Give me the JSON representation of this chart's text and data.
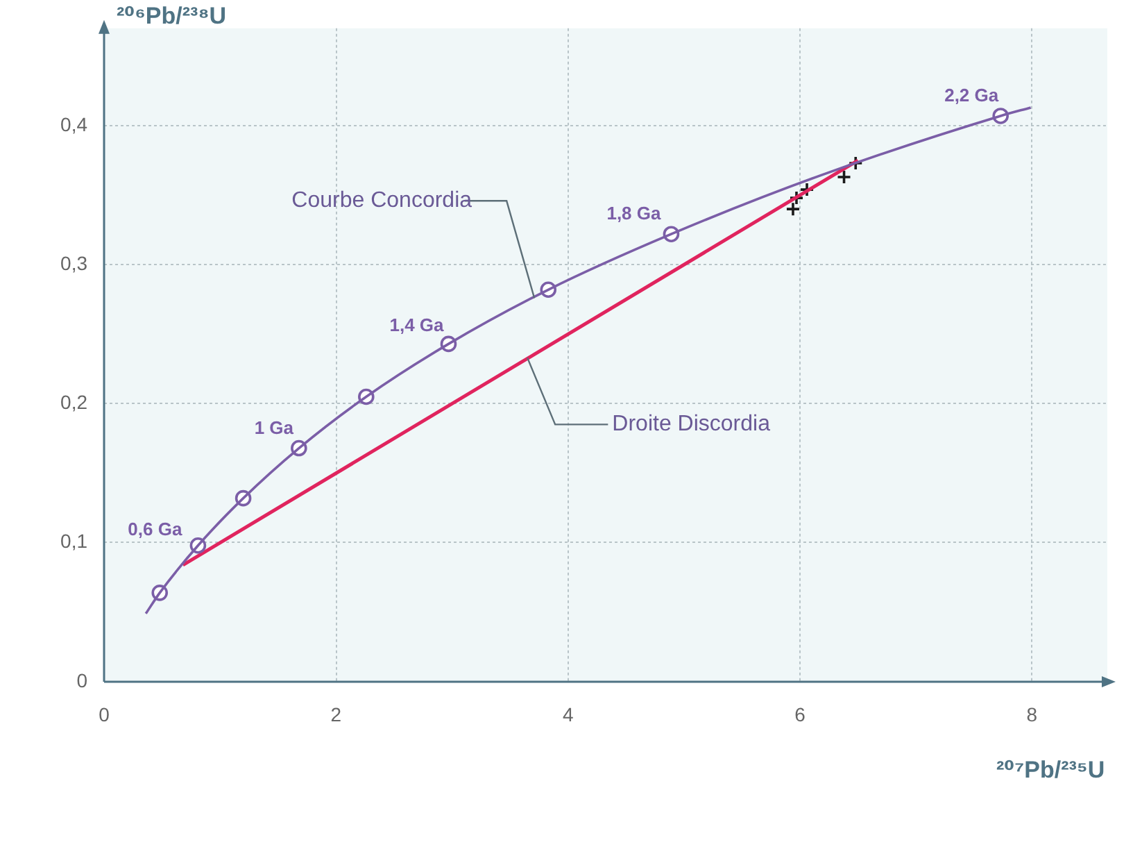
{
  "chart_data": {
    "type": "line",
    "xlabel": "²⁰⁷Pb/²³⁵U",
    "ylabel": "²⁰⁶Pb/²³⁸U",
    "xlim": [
      0,
      8.65
    ],
    "ylim": [
      0,
      0.47
    ],
    "xticks": [
      0,
      2,
      4,
      6,
      8
    ],
    "yticks": [
      0,
      {
        "value": 0.1,
        "label": "0,1"
      },
      {
        "value": 0.2,
        "label": "0,2"
      },
      {
        "value": 0.3,
        "label": "0,3"
      },
      {
        "value": 0.4,
        "label": "0,4"
      }
    ],
    "grid": true,
    "legend": false,
    "series": [
      {
        "marker": "none",
        "color": "#7b5ea7",
        "x": [
          0.36,
          0.48,
          0.81,
          1.2,
          1.68,
          2.26,
          2.97,
          3.83,
          4.89,
          6.17,
          7.73,
          7.99
        ],
        "values": [
          0.049,
          0.064,
          0.098,
          0.132,
          0.168,
          0.205,
          0.243,
          0.282,
          0.322,
          0.364,
          0.407,
          0.413
        ]
      },
      {
        "type": "scatter",
        "marker": "circle",
        "color": "#7b5ea7",
        "x": [
          0.48,
          0.81,
          1.2,
          1.68,
          2.26,
          2.97,
          3.83,
          4.89,
          7.73
        ],
        "values": [
          0.064,
          0.098,
          0.132,
          0.168,
          0.205,
          0.243,
          0.282,
          0.322,
          0.407
        ]
      },
      {
        "type": "line",
        "marker": "none",
        "color": "#e0245e",
        "x": [
          0.68,
          6.5
        ],
        "values": [
          0.084,
          0.375
        ]
      },
      {
        "type": "scatter",
        "marker": "cross",
        "color": "#1a1a1a",
        "x": [
          5.94,
          5.97,
          6.06,
          6.38,
          6.48
        ],
        "values": [
          0.34,
          0.348,
          0.354,
          0.363,
          0.373
        ]
      }
    ],
    "annotations": [
      {
        "text": "0,6 Ga",
        "x": 0.81,
        "y": 0.098
      },
      {
        "text": "1 Ga",
        "x": 1.68,
        "y": 0.168
      },
      {
        "text": "1,4 Ga",
        "x": 2.97,
        "y": 0.243
      },
      {
        "text": "1,8 Ga",
        "x": 4.89,
        "y": 0.322
      },
      {
        "text": "2,2 Ga",
        "x": 7.73,
        "y": 0.407
      },
      {
        "text": "Courbe Concordia",
        "x": 3.71,
        "y": 0.276
      },
      {
        "text": "Droite Discordia",
        "x": 3.65,
        "y": 0.233
      }
    ]
  }
}
